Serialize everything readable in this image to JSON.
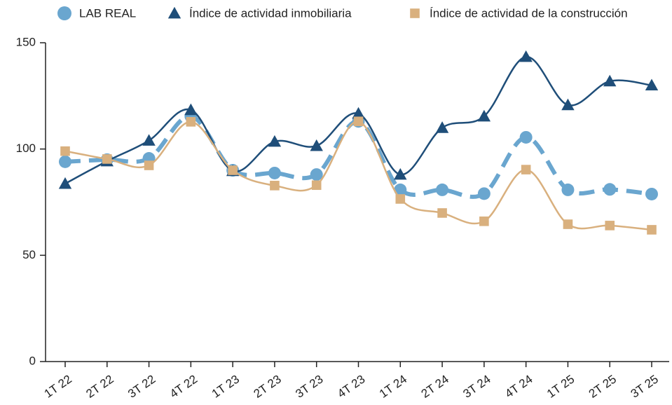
{
  "chart_data": {
    "type": "line",
    "categories": [
      "1T 22",
      "2T 22",
      "3T 22",
      "4T 22",
      "1T 23",
      "2T 23",
      "3T 23",
      "4T 23",
      "1T 24",
      "2T 24",
      "3T 24",
      "4T 24",
      "1T 25",
      "2T 25",
      "3T 25"
    ],
    "series": [
      {
        "name": "LAB REAL",
        "color": "#6aa6cf",
        "marker": "circle",
        "dashed": true,
        "values": [
          94,
          95,
          95.6,
          115.4,
          90,
          88.7,
          88,
          113,
          80.8,
          80.8,
          79,
          105.5,
          80.8,
          81,
          78.8
        ]
      },
      {
        "name": "Índice de actividad inmobiliaria",
        "color": "#1f4e79",
        "marker": "triangle",
        "dashed": false,
        "values": [
          83.7,
          94.3,
          104,
          118.4,
          89.7,
          103.5,
          101.5,
          116.7,
          88,
          110,
          115.4,
          143.4,
          120.7,
          131.9,
          130
        ]
      },
      {
        "name": "Índice de actividad de la construcción",
        "color": "#d9b07e",
        "marker": "square",
        "dashed": false,
        "values": [
          99,
          95.3,
          92.3,
          112.8,
          90,
          82.8,
          83,
          113,
          76.5,
          69.9,
          66,
          90.3,
          64.6,
          64,
          62
        ]
      }
    ],
    "ylim": [
      0,
      150
    ],
    "yticks": [
      0,
      50,
      100,
      150
    ],
    "grid": false,
    "legend": "top"
  }
}
